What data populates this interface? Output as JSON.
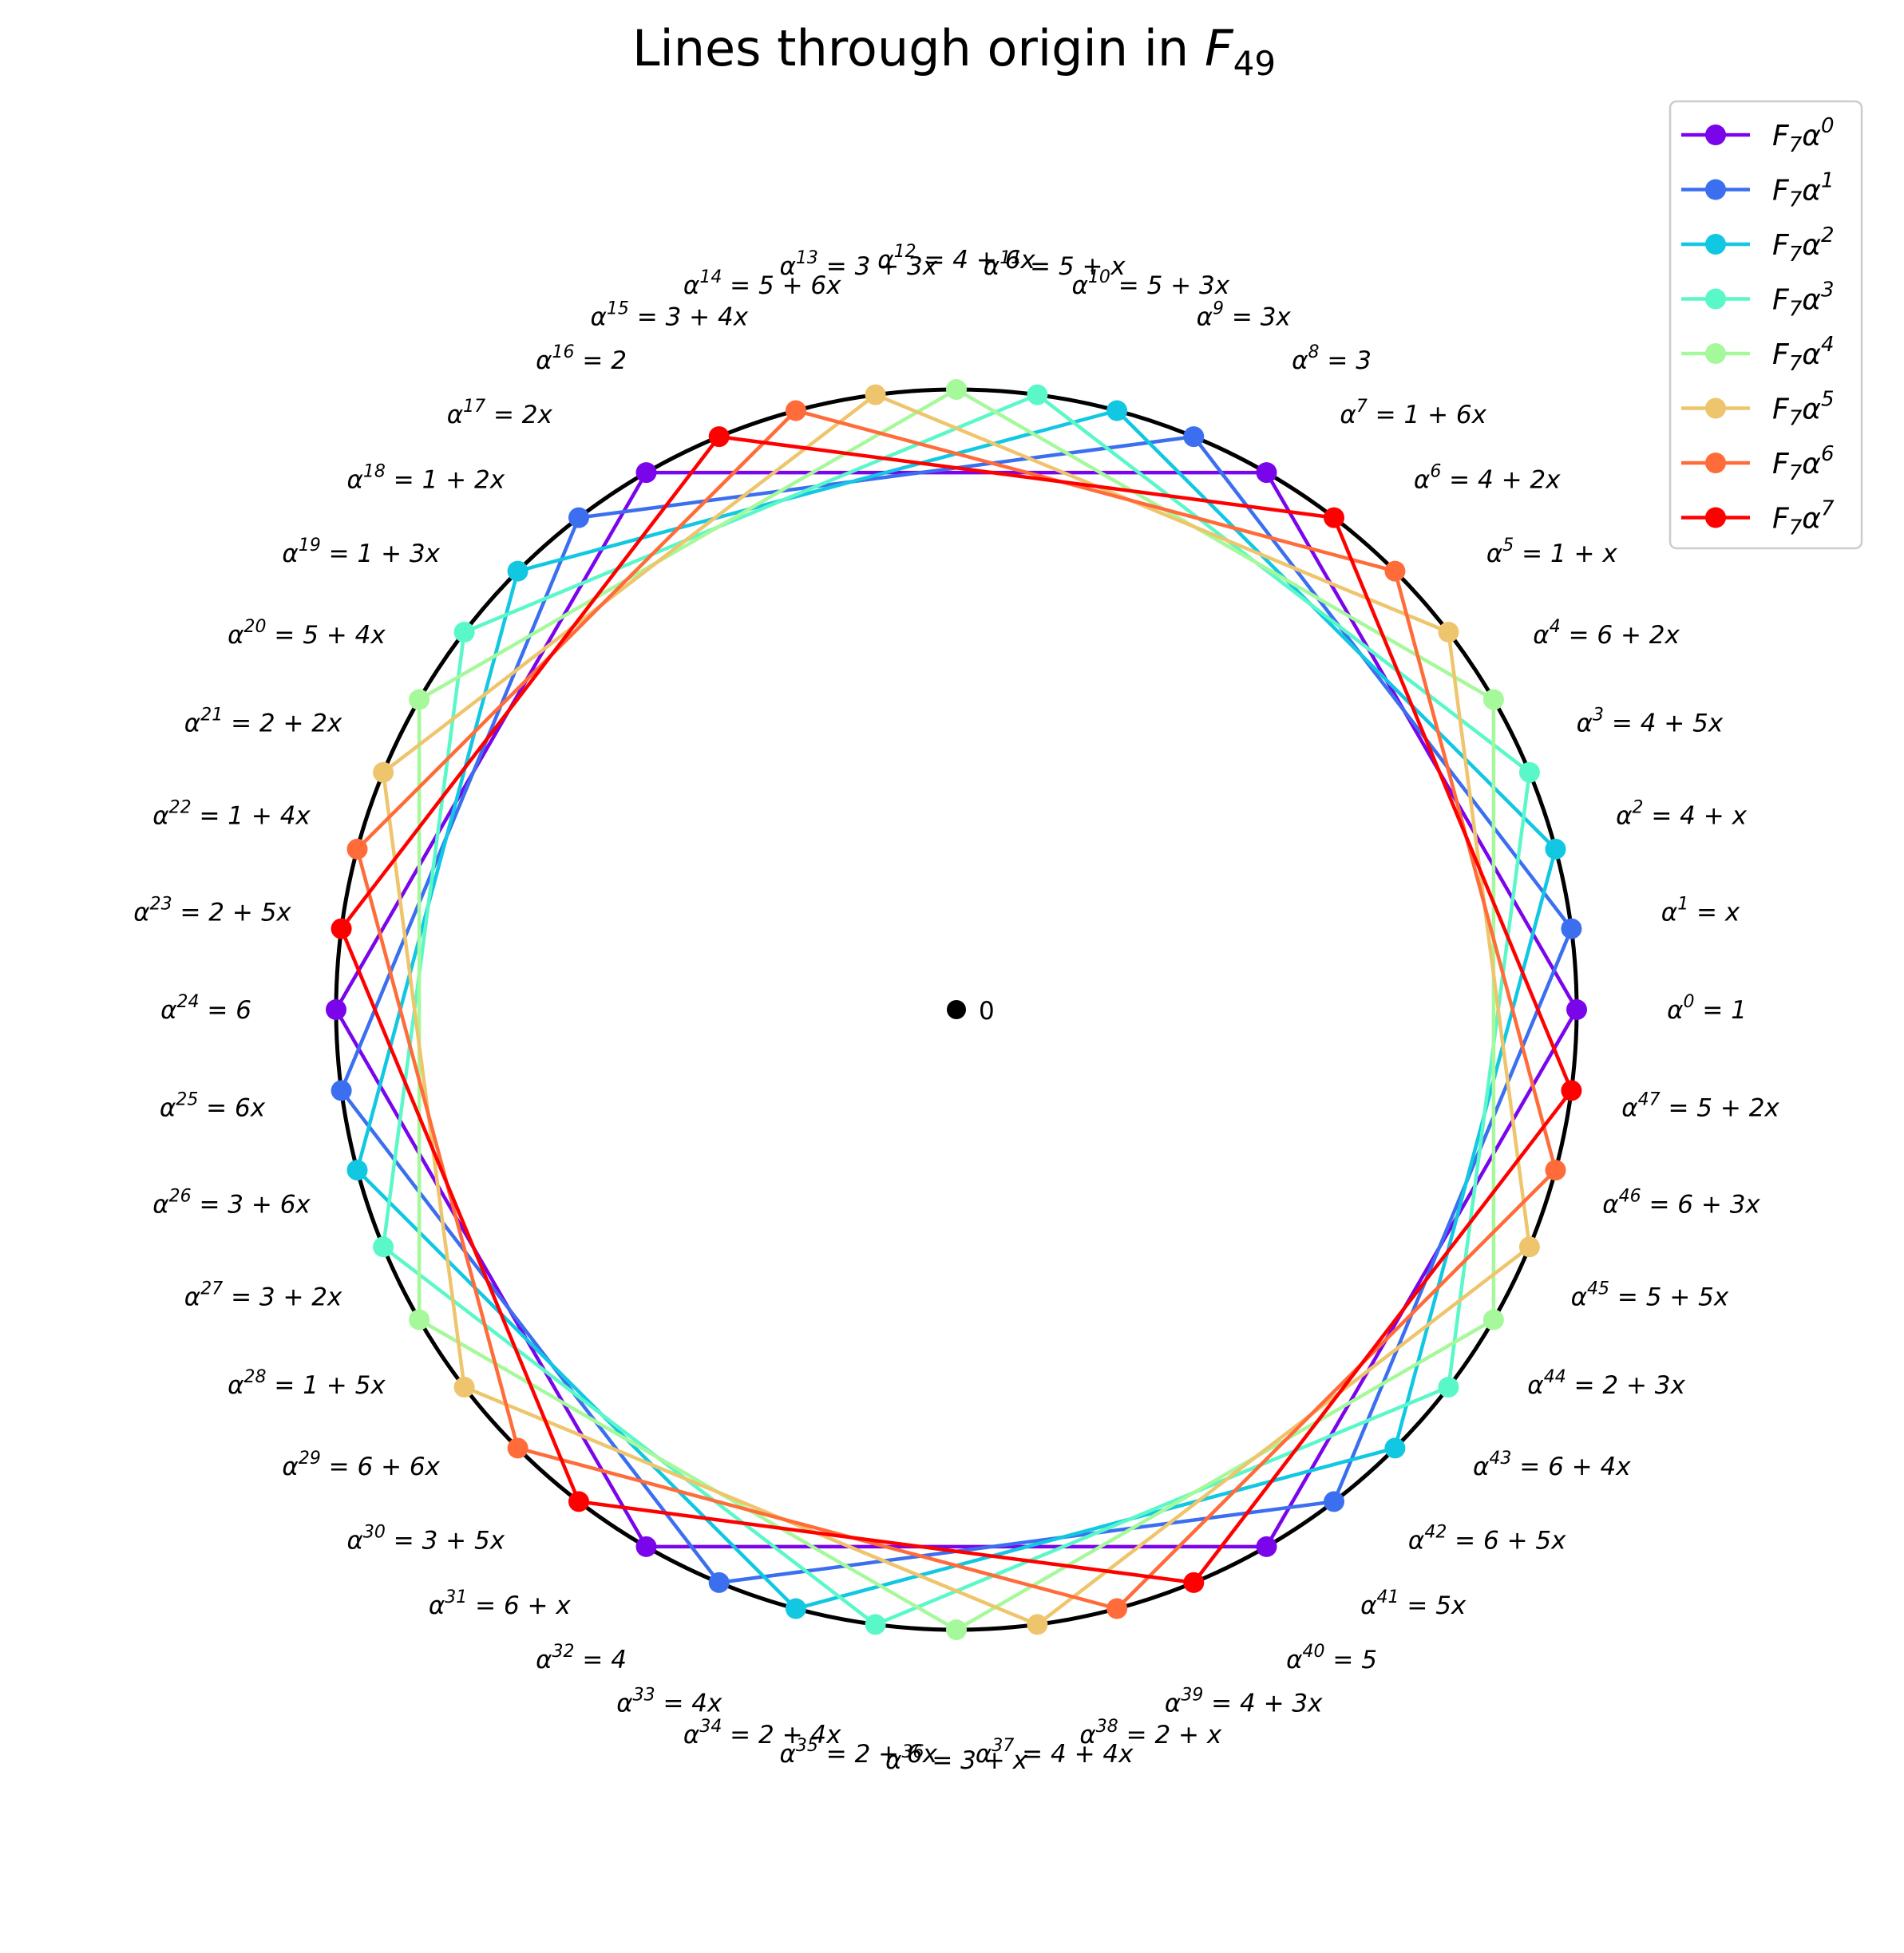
{
  "chart_data": {
    "type": "line",
    "title": "Lines through origin in F49",
    "title_parts": {
      "text": "Lines through origin in ",
      "field": "F",
      "field_sub": "49"
    },
    "origin": {
      "label": "0"
    },
    "circle": {
      "visible": true,
      "color": "#000000"
    },
    "grid": false,
    "axes_visible": false,
    "legend_position": "top-right",
    "element_labels": [
      {
        "k": 0,
        "exp": "0",
        "value": "1"
      },
      {
        "k": 1,
        "exp": "1",
        "value": "x"
      },
      {
        "k": 2,
        "exp": "2",
        "value": "4 + x"
      },
      {
        "k": 3,
        "exp": "3",
        "value": "4 + 5x"
      },
      {
        "k": 4,
        "exp": "4",
        "value": "6 + 2x"
      },
      {
        "k": 5,
        "exp": "5",
        "value": "1 + x"
      },
      {
        "k": 6,
        "exp": "6",
        "value": "4 + 2x"
      },
      {
        "k": 7,
        "exp": "7",
        "value": "1 + 6x"
      },
      {
        "k": 8,
        "exp": "8",
        "value": "3"
      },
      {
        "k": 9,
        "exp": "9",
        "value": "3x"
      },
      {
        "k": 10,
        "exp": "10",
        "value": "5 + 3x"
      },
      {
        "k": 11,
        "exp": "11",
        "value": "5 + x"
      },
      {
        "k": 12,
        "exp": "12",
        "value": "4 + 6x"
      },
      {
        "k": 13,
        "exp": "13",
        "value": "3 + 3x"
      },
      {
        "k": 14,
        "exp": "14",
        "value": "5 + 6x"
      },
      {
        "k": 15,
        "exp": "15",
        "value": "3 + 4x"
      },
      {
        "k": 16,
        "exp": "16",
        "value": "2"
      },
      {
        "k": 17,
        "exp": "17",
        "value": "2x"
      },
      {
        "k": 18,
        "exp": "18",
        "value": "1 + 2x"
      },
      {
        "k": 19,
        "exp": "19",
        "value": "1 + 3x"
      },
      {
        "k": 20,
        "exp": "20",
        "value": "5 + 4x"
      },
      {
        "k": 21,
        "exp": "21",
        "value": "2 + 2x"
      },
      {
        "k": 22,
        "exp": "22",
        "value": "1 + 4x"
      },
      {
        "k": 23,
        "exp": "23",
        "value": "2 + 5x"
      },
      {
        "k": 24,
        "exp": "24",
        "value": "6"
      },
      {
        "k": 25,
        "exp": "25",
        "value": "6x"
      },
      {
        "k": 26,
        "exp": "26",
        "value": "3 + 6x"
      },
      {
        "k": 27,
        "exp": "27",
        "value": "3 + 2x"
      },
      {
        "k": 28,
        "exp": "28",
        "value": "1 + 5x"
      },
      {
        "k": 29,
        "exp": "29",
        "value": "6 + 6x"
      },
      {
        "k": 30,
        "exp": "30",
        "value": "3 + 5x"
      },
      {
        "k": 31,
        "exp": "31",
        "value": "6 + x"
      },
      {
        "k": 32,
        "exp": "32",
        "value": "4"
      },
      {
        "k": 33,
        "exp": "33",
        "value": "4x"
      },
      {
        "k": 34,
        "exp": "34",
        "value": "2 + 4x"
      },
      {
        "k": 35,
        "exp": "35",
        "value": "2 + 6x"
      },
      {
        "k": 36,
        "exp": "36",
        "value": "3 + x"
      },
      {
        "k": 37,
        "exp": "37",
        "value": "4 + 4x"
      },
      {
        "k": 38,
        "exp": "38",
        "value": "2 + x"
      },
      {
        "k": 39,
        "exp": "39",
        "value": "4 + 3x"
      },
      {
        "k": 40,
        "exp": "40",
        "value": "5"
      },
      {
        "k": 41,
        "exp": "41",
        "value": "5x"
      },
      {
        "k": 42,
        "exp": "42",
        "value": "6 + 5x"
      },
      {
        "k": 43,
        "exp": "43",
        "value": "6 + 4x"
      },
      {
        "k": 44,
        "exp": "44",
        "value": "2 + 3x"
      },
      {
        "k": 45,
        "exp": "45",
        "value": "5 + 5x"
      },
      {
        "k": 46,
        "exp": "46",
        "value": "6 + 3x"
      },
      {
        "k": 47,
        "exp": "47",
        "value": "5 + 2x"
      }
    ],
    "series": [
      {
        "name": "F7α0",
        "label_sup": "0",
        "color": "#7a05eb",
        "points": [
          0,
          8,
          16,
          24,
          32,
          40
        ]
      },
      {
        "name": "F7α1",
        "label_sup": "1",
        "color": "#3b6ff0",
        "points": [
          1,
          9,
          17,
          25,
          33,
          41
        ]
      },
      {
        "name": "F7α2",
        "label_sup": "2",
        "color": "#11c7e2",
        "points": [
          2,
          10,
          18,
          26,
          34,
          42
        ]
      },
      {
        "name": "F7α3",
        "label_sup": "3",
        "color": "#5af8c8",
        "points": [
          3,
          11,
          19,
          27,
          35,
          43
        ]
      },
      {
        "name": "F7α4",
        "label_sup": "4",
        "color": "#a6f99b",
        "points": [
          4,
          12,
          20,
          28,
          36,
          44
        ]
      },
      {
        "name": "F7α5",
        "label_sup": "5",
        "color": "#eec56c",
        "points": [
          5,
          13,
          21,
          29,
          37,
          45
        ]
      },
      {
        "name": "F7α6",
        "label_sup": "6",
        "color": "#ff6c3a",
        "points": [
          6,
          14,
          22,
          30,
          38,
          46
        ]
      },
      {
        "name": "F7α7",
        "label_sup": "7",
        "color": "#ff0000",
        "points": [
          7,
          15,
          23,
          31,
          39,
          47
        ]
      }
    ]
  }
}
